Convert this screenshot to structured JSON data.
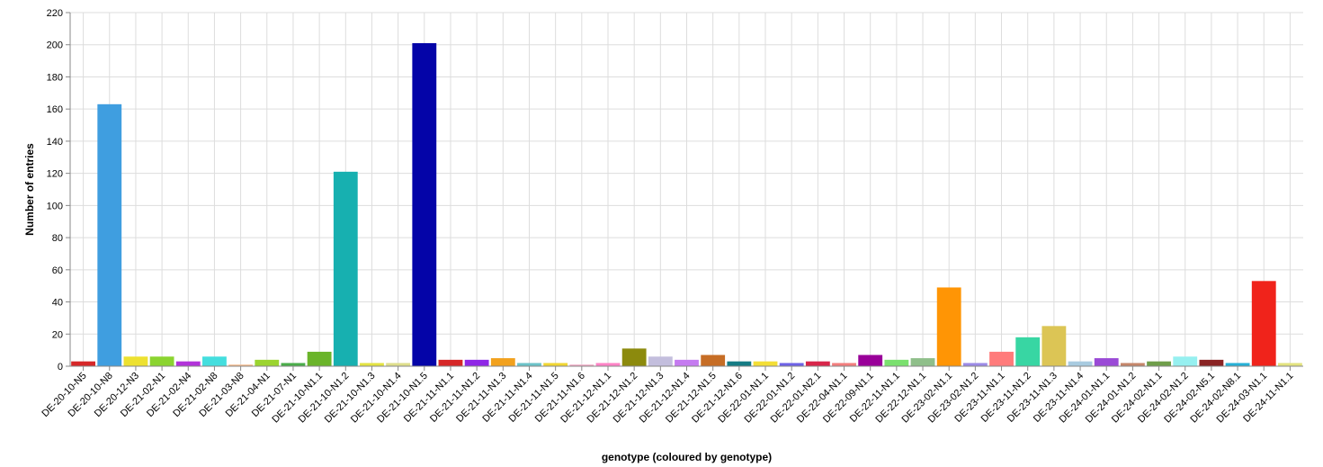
{
  "chart_data": {
    "type": "bar",
    "xlabel": "genotype (coloured by genotype)",
    "ylabel": "Number of entries",
    "ylim": [
      0,
      220
    ],
    "yticks": [
      0,
      20,
      40,
      60,
      80,
      100,
      120,
      140,
      160,
      180,
      200,
      220
    ],
    "grid": true,
    "categories": [
      "DE-20-10-N5",
      "DE-20-10-N8",
      "DE-20-12-N3",
      "DE-21-02-N1",
      "DE-21-02-N4",
      "DE-21-02-N8",
      "DE-21-03-N8",
      "DE-21-04-N1",
      "DE-21-07-N1",
      "DE-21-10-N1.1",
      "DE-21-10-N1.2",
      "DE-21-10-N1.3",
      "DE-21-10-N1.4",
      "DE-21-10-N1.5",
      "DE-21-11-N1.1",
      "DE-21-11-N1.2",
      "DE-21-11-N1.3",
      "DE-21-11-N1.4",
      "DE-21-11-N1.5",
      "DE-21-11-N1.6",
      "DE-21-12-N1.1",
      "DE-21-12-N1.2",
      "DE-21-12-N1.3",
      "DE-21-12-N1.4",
      "DE-21-12-N1.5",
      "DE-21-12-N1.6",
      "DE-22-01-N1.1",
      "DE-22-01-N1.2",
      "DE-22-01-N2.1",
      "DE-22-04-N1.1",
      "DE-22-09-N1.1",
      "DE-22-11-N1.1",
      "DE-22-12-N1.1",
      "DE-23-02-N1.1",
      "DE-23-02-N1.2",
      "DE-23-11-N1.1",
      "DE-23-11-N1.2",
      "DE-23-11-N1.3",
      "DE-23-11-N1.4",
      "DE-24-01-N1.1",
      "DE-24-01-N1.2",
      "DE-24-02-N1.1",
      "DE-24-02-N1.2",
      "DE-24-02-N5.1",
      "DE-24-02-N8.1",
      "DE-24-03-N1.1",
      "DE-24-11-N1.1"
    ],
    "values": [
      3,
      163,
      6,
      6,
      3,
      6,
      1,
      4,
      2,
      9,
      121,
      2,
      2,
      201,
      4,
      4,
      5,
      2,
      2,
      1,
      2,
      11,
      6,
      4,
      7,
      3,
      3,
      2,
      3,
      2,
      7,
      4,
      5,
      49,
      2,
      9,
      18,
      25,
      3,
      5,
      2,
      3,
      6,
      4,
      2,
      53,
      2
    ],
    "colors": [
      "#d62728",
      "#3f9ee0",
      "#ede130",
      "#8bd430",
      "#b233d9",
      "#44dede",
      "#f5b98a",
      "#9bd42f",
      "#4aad4a",
      "#6ab42a",
      "#17b0b0",
      "#e3e342",
      "#dede8c",
      "#0404a8",
      "#d62728",
      "#8f27e6",
      "#f2a11d",
      "#6cc3c8",
      "#f0d633",
      "#f0a6c2",
      "#ff83c6",
      "#8c8a0d",
      "#c3bedd",
      "#c57bf0",
      "#c66d25",
      "#157c85",
      "#f3de36",
      "#6e62e6",
      "#d8254a",
      "#f27e7e",
      "#990099",
      "#7ae06e",
      "#8fbf8a",
      "#ff9505",
      "#9c8ae6",
      "#ff7b7b",
      "#38d6a3",
      "#dcc555",
      "#a8cbe0",
      "#9a4ad6",
      "#c5866a",
      "#6f9e4a",
      "#96f0f0",
      "#8a2424",
      "#27b0d6",
      "#f0231b",
      "#e3e37f"
    ]
  }
}
